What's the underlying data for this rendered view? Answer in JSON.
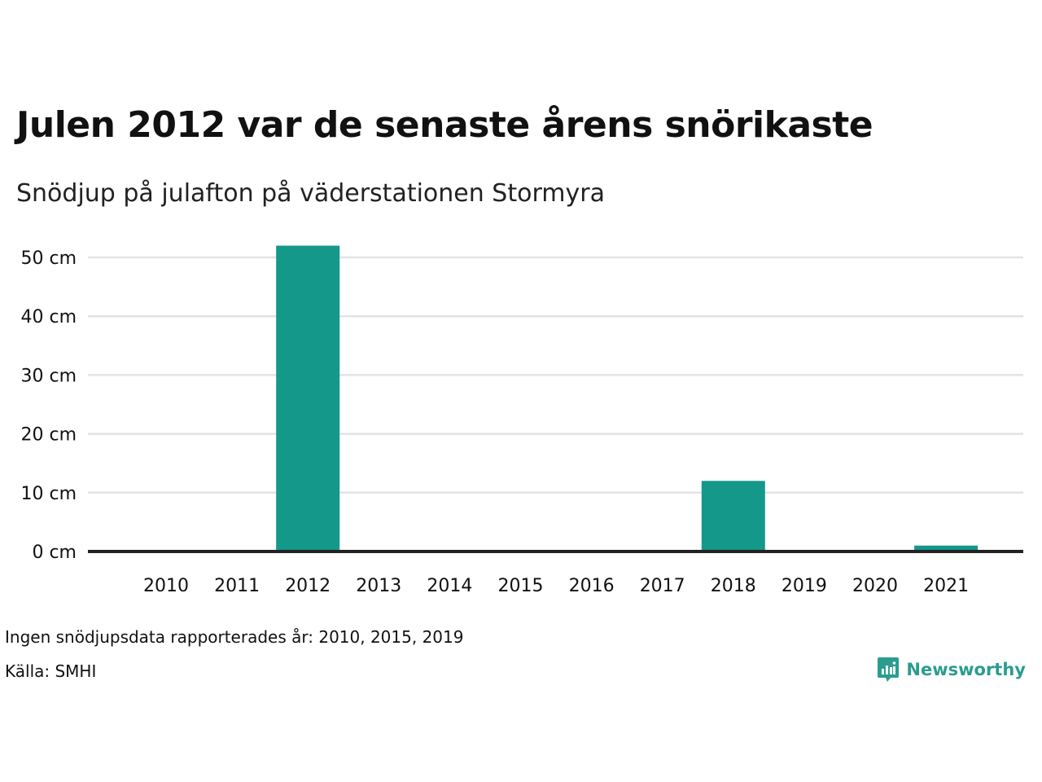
{
  "colors": {
    "bar": "#14988a",
    "grid": "#e3e3e3",
    "axis": "#222222",
    "brand": "#2a9d8f"
  },
  "title": "Julen 2012 var de senaste årens snörikaste",
  "subtitle": "Snödjup på julafton på väderstationen Stormyra",
  "note": "Ingen snödjupsdata rapporterades år: 2010, 2015, 2019",
  "source": "Källa: SMHI",
  "logo": {
    "text": "Newsworthy",
    "icon": "bar-chart-speech-bubble-icon"
  },
  "chart_data": {
    "type": "bar",
    "categories": [
      "2010",
      "2011",
      "2012",
      "2013",
      "2014",
      "2015",
      "2016",
      "2017",
      "2018",
      "2019",
      "2020",
      "2021"
    ],
    "values": [
      null,
      0,
      52,
      0,
      0,
      null,
      0,
      0,
      12,
      null,
      0,
      1
    ],
    "ylim": [
      0,
      50
    ],
    "yticks": [
      0,
      10,
      20,
      30,
      40,
      50
    ],
    "ytick_labels": [
      "0 cm",
      "10 cm",
      "20 cm",
      "30 cm",
      "40 cm",
      "50 cm"
    ],
    "grid": true,
    "legend": "none"
  }
}
